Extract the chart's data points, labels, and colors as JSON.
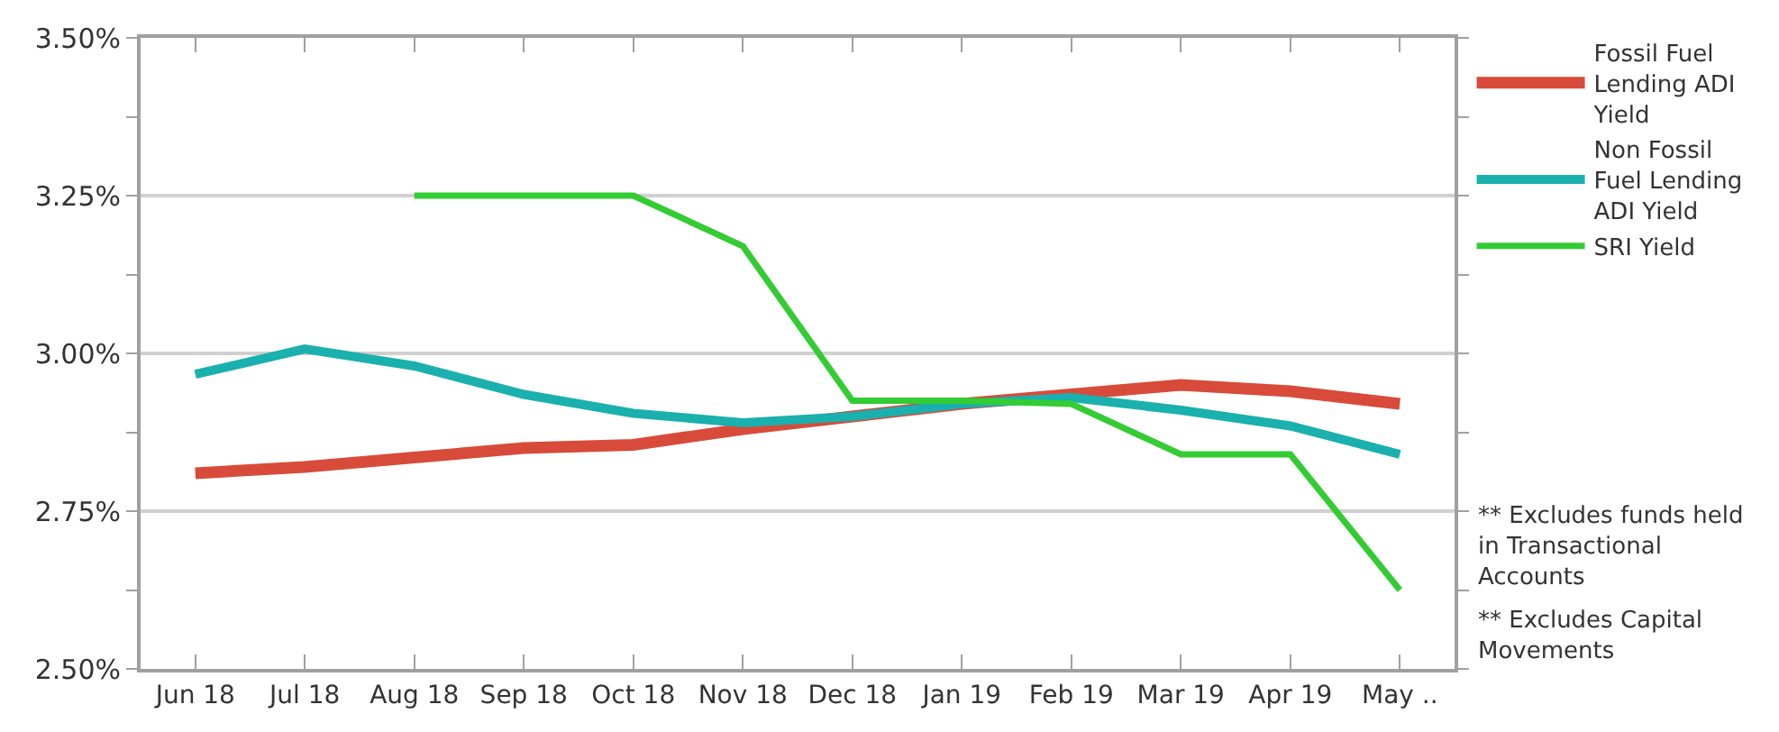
{
  "chart_data": {
    "type": "line",
    "categories": [
      "Jun 18",
      "Jul 18",
      "Aug 18",
      "Sep 18",
      "Oct 18",
      "Nov 18",
      "Dec 18",
      "Jan 19",
      "Feb 19",
      "Mar 19",
      "Apr 19",
      "May .."
    ],
    "series": [
      {
        "name": "Fossil Fuel Lending ADI Yield",
        "color": "#d84b3a",
        "values": [
          2.81,
          2.82,
          2.835,
          2.85,
          2.855,
          2.88,
          2.9,
          2.92,
          2.935,
          2.95,
          2.94,
          2.92
        ]
      },
      {
        "name": "Non Fossil Fuel Lending ADI Yield",
        "color": "#1ab0ad",
        "values": [
          2.967,
          3.007,
          2.98,
          2.935,
          2.905,
          2.89,
          2.9,
          2.92,
          2.93,
          2.91,
          2.885,
          2.84
        ]
      },
      {
        "name": "SRI Yield",
        "color": "#33cc33",
        "values": [
          null,
          null,
          3.25,
          3.25,
          3.25,
          3.17,
          2.925,
          2.925,
          2.92,
          2.84,
          2.84,
          2.625
        ]
      }
    ],
    "ylim": [
      2.5,
      3.5
    ],
    "yticks": [
      {
        "value": 2.5,
        "label": "2.50%"
      },
      {
        "value": 2.625,
        "label": null
      },
      {
        "value": 2.75,
        "label": "2.75%"
      },
      {
        "value": 2.875,
        "label": null
      },
      {
        "value": 3.0,
        "label": "3.00%"
      },
      {
        "value": 3.125,
        "label": null
      },
      {
        "value": 3.25,
        "label": "3.25%"
      },
      {
        "value": 3.375,
        "label": null
      },
      {
        "value": 3.5,
        "label": "3.50%"
      }
    ],
    "grid": "y",
    "legend": "right",
    "marker": "none",
    "line_style": "solid",
    "annotations": [
      "** Excludes funds held in Transactional Accounts",
      "** Excludes Capital Movements"
    ]
  }
}
